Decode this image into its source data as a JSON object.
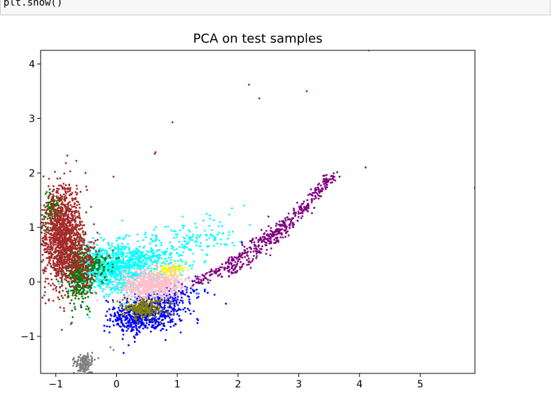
{
  "code": {
    "line": "plt.show()"
  },
  "chart_data": {
    "type": "scatter",
    "title": "PCA on test samples",
    "xlabel": "",
    "ylabel": "",
    "xlim": [
      -1.25,
      5.9
    ],
    "ylim": [
      -1.68,
      4.25
    ],
    "xticks": [
      -1,
      0,
      1,
      2,
      3,
      4,
      5
    ],
    "yticks": [
      -1,
      0,
      1,
      2,
      3,
      4
    ],
    "xtick_labels": [
      "−1",
      "0",
      "1",
      "2",
      "3",
      "4",
      "5"
    ],
    "ytick_labels": [
      "−1",
      "0",
      "1",
      "2",
      "3",
      "4"
    ],
    "grid": false,
    "legend": "none",
    "series": [
      {
        "color": "#0000ff",
        "clusters": [
          {
            "cx": 0.55,
            "cy": -0.55,
            "sx": 0.28,
            "sy": 0.18,
            "n": 450
          },
          {
            "cx": 0.3,
            "cy": -0.7,
            "sx": 0.2,
            "sy": 0.12,
            "n": 200
          },
          {
            "cx": 1.0,
            "cy": -0.25,
            "sx": 0.25,
            "sy": 0.15,
            "n": 80
          }
        ],
        "points": [
          [
            -0.2,
            -0.9
          ],
          [
            0.3,
            -1.1
          ],
          [
            -0.1,
            -0.6
          ],
          [
            1.3,
            0.1
          ],
          [
            1.5,
            -0.2
          ],
          [
            0.9,
            -0.7
          ],
          [
            1.8,
            -0.4
          ],
          [
            0.1,
            -1.05
          ]
        ]
      },
      {
        "color": "#800080",
        "curves": [
          {
            "from": [
              1.3,
              0.0
            ],
            "to": [
              3.62,
              2.0
            ],
            "n": 320,
            "jitter": 0.05
          },
          {
            "from": [
              1.8,
              0.1
            ],
            "to": [
              3.5,
              1.9
            ],
            "n": 150,
            "jitter": 0.06
          },
          {
            "from": [
              2.0,
              0.7
            ],
            "to": [
              2.8,
              1.0
            ],
            "n": 40,
            "jitter": 0.04
          }
        ],
        "points": [
          [
            5.9,
            1.73
          ],
          [
            4.1,
            2.1
          ],
          [
            2.5,
            1.2
          ],
          [
            3.2,
            1.7
          ]
        ]
      },
      {
        "color": "#00ffff",
        "clusters": [
          {
            "cx": -0.1,
            "cy": 0.25,
            "sx": 0.32,
            "sy": 0.22,
            "n": 900
          },
          {
            "cx": 0.5,
            "cy": 0.4,
            "sx": 0.35,
            "sy": 0.2,
            "n": 300
          },
          {
            "cx": 1.3,
            "cy": 0.8,
            "sx": 0.35,
            "sy": 0.2,
            "n": 120
          }
        ],
        "points": [
          [
            1.9,
            1.35
          ],
          [
            2.1,
            1.4
          ],
          [
            1.7,
            1.1
          ],
          [
            -0.45,
            -0.65
          ],
          [
            -0.5,
            -0.5
          ],
          [
            1.2,
            0.6
          ]
        ]
      },
      {
        "color": "#008000",
        "clusters": [
          {
            "cx": -0.62,
            "cy": 0.15,
            "sx": 0.1,
            "sy": 0.3,
            "n": 350
          },
          {
            "cx": -1.05,
            "cy": 1.3,
            "sx": 0.07,
            "sy": 0.2,
            "n": 120
          },
          {
            "cx": -0.3,
            "cy": 0.3,
            "sx": 0.12,
            "sy": 0.12,
            "n": 80
          }
        ],
        "points": [
          [
            -1.15,
            1.65
          ],
          [
            -1.1,
            1.7
          ],
          [
            -0.5,
            -0.5
          ],
          [
            -0.7,
            -0.4
          ]
        ]
      },
      {
        "color": "#a52a2a",
        "clusters": [
          {
            "cx": -0.9,
            "cy": 0.85,
            "sx": 0.16,
            "sy": 0.45,
            "n": 1200
          },
          {
            "cx": -0.6,
            "cy": 0.4,
            "sx": 0.15,
            "sy": 0.3,
            "n": 250
          }
        ],
        "points": [
          [
            0.63,
            2.35
          ],
          [
            0.64,
            2.38
          ],
          [
            0.92,
            2.93
          ],
          [
            2.18,
            3.62
          ],
          [
            2.35,
            3.37
          ],
          [
            3.13,
            3.5
          ],
          [
            4.15,
            4.25
          ],
          [
            -0.05,
            1.93
          ],
          [
            -0.5,
            1.75
          ],
          [
            -0.9,
            -0.88
          ]
        ]
      },
      {
        "color": "#808000",
        "clusters": [
          {
            "cx": 0.45,
            "cy": -0.48,
            "sx": 0.18,
            "sy": 0.08,
            "n": 260
          }
        ],
        "points": []
      },
      {
        "color": "#ffff00",
        "clusters": [
          {
            "cx": 0.9,
            "cy": 0.22,
            "sx": 0.12,
            "sy": 0.06,
            "n": 90
          }
        ],
        "points": []
      },
      {
        "color": "#ffc0cb",
        "clusters": [
          {
            "cx": 0.6,
            "cy": -0.05,
            "sx": 0.26,
            "sy": 0.13,
            "n": 700
          }
        ],
        "points": []
      },
      {
        "color": "#808080",
        "clusters": [
          {
            "cx": -0.55,
            "cy": -1.5,
            "sx": 0.08,
            "sy": 0.08,
            "n": 140
          }
        ],
        "points": [
          [
            -0.3,
            -1.4
          ],
          [
            -0.1,
            -1.2
          ],
          [
            -0.4,
            -1.3
          ],
          [
            -0.05,
            -1.25
          ]
        ]
      }
    ]
  }
}
